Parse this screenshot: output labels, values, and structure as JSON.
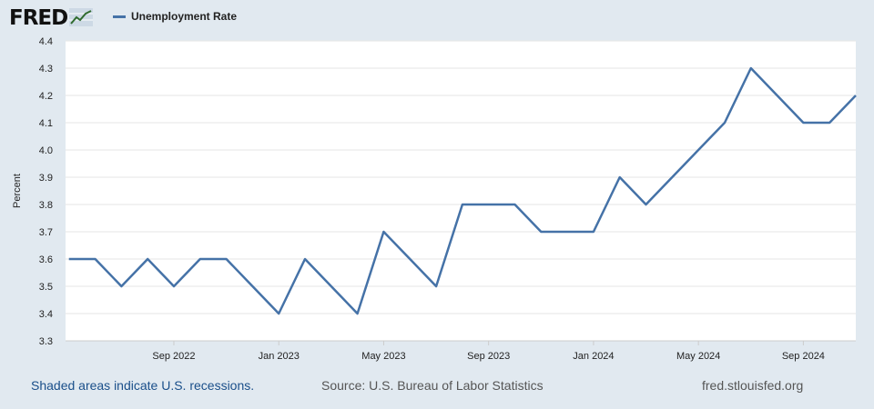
{
  "header": {
    "logo_text": "FRED",
    "logo_icon": "trend-line-icon"
  },
  "chart_data": {
    "type": "line",
    "title": "",
    "xlabel": "",
    "ylabel": "Percent",
    "ylim": [
      3.3,
      4.4
    ],
    "yticks": [
      "3.3",
      "3.4",
      "3.5",
      "3.6",
      "3.7",
      "3.8",
      "3.9",
      "4.0",
      "4.1",
      "4.2",
      "4.3",
      "4.4"
    ],
    "xticks": [
      {
        "label": "Sep 2022",
        "date": "2022-09"
      },
      {
        "label": "Jan 2023",
        "date": "2023-01"
      },
      {
        "label": "May 2023",
        "date": "2023-05"
      },
      {
        "label": "Sep 2023",
        "date": "2023-09"
      },
      {
        "label": "Jan 2024",
        "date": "2024-01"
      },
      {
        "label": "May 2024",
        "date": "2024-05"
      },
      {
        "label": "Sep 2024",
        "date": "2024-09"
      }
    ],
    "grid": true,
    "legend": "top-left",
    "series": [
      {
        "name": "Unemployment Rate",
        "color": "#4572a7",
        "x": [
          "2022-05",
          "2022-06",
          "2022-07",
          "2022-08",
          "2022-09",
          "2022-10",
          "2022-11",
          "2022-12",
          "2023-01",
          "2023-02",
          "2023-03",
          "2023-04",
          "2023-05",
          "2023-06",
          "2023-07",
          "2023-08",
          "2023-09",
          "2023-10",
          "2023-11",
          "2023-12",
          "2024-01",
          "2024-02",
          "2024-03",
          "2024-04",
          "2024-05",
          "2024-06",
          "2024-07",
          "2024-08",
          "2024-09",
          "2024-10",
          "2024-11"
        ],
        "values": [
          3.6,
          3.6,
          3.5,
          3.6,
          3.5,
          3.6,
          3.6,
          3.5,
          3.4,
          3.6,
          3.5,
          3.4,
          3.7,
          3.6,
          3.5,
          3.8,
          3.8,
          3.8,
          3.7,
          3.7,
          3.7,
          3.9,
          3.8,
          3.9,
          4.0,
          4.1,
          4.3,
          4.2,
          4.1,
          4.1,
          4.2
        ]
      }
    ]
  },
  "footer": {
    "note": "Shaded areas indicate U.S. recessions.",
    "source": "Source: U.S. Bureau of Labor Statistics",
    "site": "fred.stlouisfed.org"
  }
}
